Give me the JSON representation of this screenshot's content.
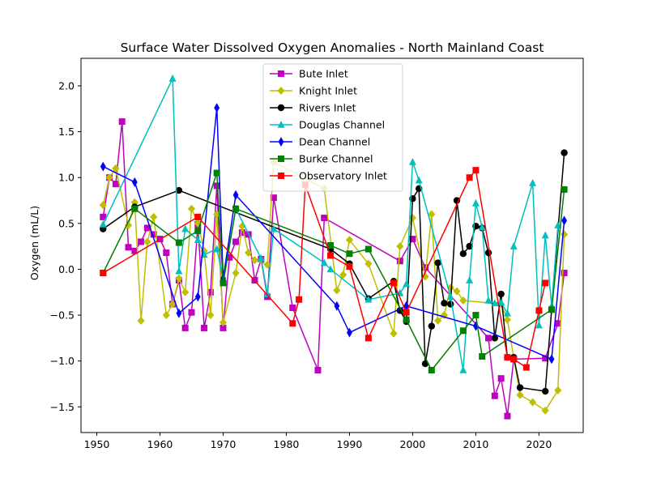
{
  "chart_data": {
    "type": "line",
    "title": "Surface Water Dissolved Oxygen Anomalies - North Mainland Coast",
    "xlabel": "",
    "ylabel": "Oxygen (mL/L)",
    "xlim": [
      1947.5,
      2027
    ],
    "ylim": [
      -1.78,
      2.3
    ],
    "xticks": [
      1950,
      1960,
      1970,
      1980,
      1990,
      2000,
      2010,
      2020
    ],
    "yticks": [
      -1.5,
      -1.0,
      -0.5,
      0.0,
      0.5,
      1.0,
      1.5,
      2.0
    ],
    "xtick_labels": [
      "1950",
      "1960",
      "1970",
      "1980",
      "1990",
      "2000",
      "2010",
      "2020"
    ],
    "ytick_labels": [
      "−1.5",
      "−1.0",
      "−0.5",
      "0.0",
      "0.5",
      "1.0",
      "1.5",
      "2.0"
    ],
    "grid": false,
    "legend_position": "top-center",
    "series": [
      {
        "name": "Bute Inlet",
        "color": "#bf00bf",
        "marker": "square",
        "x": [
          1951,
          1952,
          1953,
          1954,
          1955,
          1956,
          1957,
          1958,
          1959,
          1960,
          1961,
          1962,
          1963,
          1964,
          1965,
          1966,
          1967,
          1968,
          1969,
          1970,
          1971,
          1972,
          1973,
          1974,
          1975,
          1976,
          1977,
          1978,
          1981,
          1985,
          1986,
          1998,
          2000,
          2002,
          2012,
          2013,
          2014,
          2015,
          2016,
          2021,
          2023,
          2024
        ],
        "y": [
          0.57,
          1.0,
          0.93,
          1.61,
          0.24,
          0.2,
          0.3,
          0.45,
          0.38,
          0.33,
          0.18,
          -0.38,
          -0.12,
          -0.64,
          -0.47,
          0.49,
          -0.64,
          -0.25,
          0.91,
          -0.64,
          0.13,
          0.3,
          0.4,
          0.38,
          -0.12,
          0.11,
          -0.3,
          0.78,
          -0.42,
          -1.1,
          0.56,
          0.09,
          0.33,
          0.02,
          -0.75,
          -1.38,
          -1.19,
          -1.6,
          -0.98,
          -0.97,
          -0.59,
          -0.04
        ]
      },
      {
        "name": "Knight Inlet",
        "color": "#bfbf00",
        "marker": "diamond",
        "x": [
          1951,
          1952,
          1953,
          1955,
          1956,
          1957,
          1958,
          1959,
          1961,
          1962,
          1963,
          1964,
          1965,
          1966,
          1967,
          1968,
          1969,
          1970,
          1972,
          1973,
          1974,
          1975,
          1977,
          1978,
          1986,
          1988,
          1989,
          1990,
          1993,
          1997,
          1998,
          2000,
          2002,
          2003,
          2004,
          2005,
          2006,
          2007,
          2008,
          2014,
          2015,
          2017,
          2019,
          2021,
          2023,
          2024
        ],
        "y": [
          0.7,
          1.0,
          1.1,
          0.48,
          0.73,
          -0.56,
          0.3,
          0.57,
          -0.5,
          -0.38,
          -0.1,
          -0.25,
          0.66,
          0.5,
          0.2,
          -0.5,
          0.6,
          -0.58,
          -0.04,
          0.47,
          0.18,
          0.1,
          0.05,
          1.17,
          0.88,
          -0.23,
          -0.06,
          0.32,
          0.06,
          -0.7,
          0.25,
          0.56,
          -0.08,
          0.6,
          -0.56,
          -0.5,
          -0.2,
          -0.24,
          -0.34,
          -0.38,
          -0.55,
          -1.37,
          -1.45,
          -1.54,
          -1.32,
          0.38
        ]
      },
      {
        "name": "Rivers Inlet",
        "color": "#000000",
        "marker": "circle",
        "x": [
          1951,
          1956,
          1963,
          1987,
          1990,
          1993,
          1997,
          1998,
          1999,
          2000,
          2001,
          2002,
          2003,
          2004,
          2005,
          2006,
          2007,
          2008,
          2009,
          2010,
          2011,
          2012,
          2013,
          2014,
          2015,
          2016,
          2017,
          2021,
          2022,
          2024
        ],
        "y": [
          0.44,
          0.68,
          0.86,
          0.22,
          0.06,
          -0.32,
          -0.13,
          -0.45,
          -0.57,
          0.77,
          0.88,
          -1.03,
          -0.62,
          0.07,
          -0.37,
          -0.38,
          0.75,
          0.17,
          0.25,
          0.47,
          0.45,
          0.18,
          -0.75,
          -0.27,
          -0.96,
          -0.96,
          -1.29,
          -1.33,
          -0.44,
          1.27
        ]
      },
      {
        "name": "Douglas Channel",
        "color": "#00bfbf",
        "marker": "triangle",
        "x": [
          1951,
          1962,
          1963,
          1964,
          1966,
          1967,
          1969,
          1970,
          1972,
          1976,
          1977,
          1978,
          1986,
          1987,
          1993,
          1998,
          1999,
          2000,
          2001,
          2006,
          2008,
          2009,
          2010,
          2011,
          2012,
          2013,
          2014,
          2015,
          2016,
          2019,
          2020,
          2021,
          2022,
          2023
        ],
        "y": [
          0.49,
          2.08,
          -0.02,
          0.44,
          0.32,
          0.16,
          0.22,
          -0.1,
          0.66,
          0.12,
          -0.27,
          0.44,
          0.07,
          0.0,
          -0.33,
          -0.26,
          -0.16,
          1.17,
          0.97,
          -0.3,
          -1.1,
          -0.12,
          0.72,
          0.46,
          -0.34,
          -0.37,
          -0.36,
          -0.48,
          0.25,
          0.94,
          -0.61,
          0.37,
          -0.4,
          0.48
        ]
      },
      {
        "name": "Dean Channel",
        "color": "#0000ff",
        "marker": "thin_diamond",
        "x": [
          1951,
          1956,
          1963,
          1966,
          1969,
          1970,
          1972,
          1988,
          1990,
          1999,
          2010,
          2022,
          2024
        ],
        "y": [
          1.12,
          0.95,
          -0.48,
          -0.3,
          1.76,
          -0.1,
          0.81,
          -0.4,
          -0.69,
          -0.4,
          -0.62,
          -0.98,
          0.53
        ]
      },
      {
        "name": "Burke Channel",
        "color": "#008000",
        "marker": "square",
        "x": [
          1951,
          1956,
          1963,
          1966,
          1969,
          1970,
          1972,
          1987,
          1990,
          1993,
          1999,
          2003,
          2008,
          2010,
          2011,
          2022,
          2024
        ],
        "y": [
          -0.04,
          0.66,
          0.29,
          0.42,
          1.05,
          -0.15,
          0.66,
          0.26,
          0.17,
          0.22,
          -0.55,
          -1.1,
          -0.67,
          -0.5,
          -0.95,
          -0.44,
          0.87
        ]
      },
      {
        "name": "Observatory Inlet",
        "color": "#ff0000",
        "marker": "square",
        "x": [
          1951,
          1966,
          1981,
          1982,
          1983,
          1987,
          1990,
          1993,
          1997,
          1999,
          2009,
          2010,
          2015,
          2016,
          2018,
          2020,
          2021
        ],
        "y": [
          -0.04,
          0.57,
          -0.59,
          -0.33,
          0.92,
          0.15,
          0.03,
          -0.75,
          -0.15,
          -0.47,
          1.0,
          1.08,
          -0.96,
          -0.98,
          -1.07,
          -0.45,
          -0.15
        ]
      }
    ]
  }
}
